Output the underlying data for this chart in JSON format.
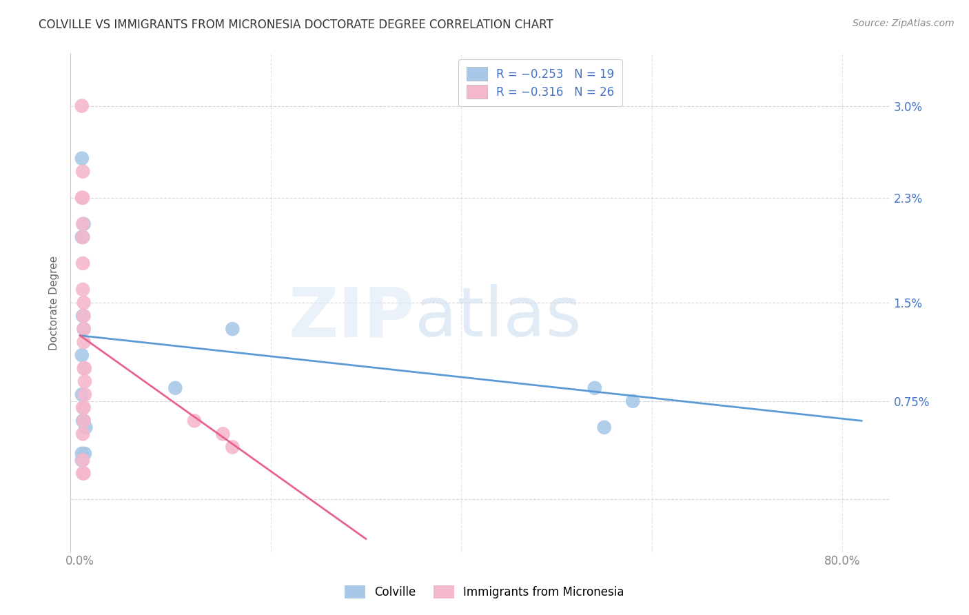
{
  "title": "COLVILLE VS IMMIGRANTS FROM MICRONESIA DOCTORATE DEGREE CORRELATION CHART",
  "source": "Source: ZipAtlas.com",
  "ylabel": "Doctorate Degree",
  "color_blue": "#a8c8e8",
  "color_pink": "#f4b8cc",
  "line_blue": "#5b9bd5",
  "line_pink": "#e8638a",
  "ytick_vals": [
    0.0,
    0.0075,
    0.015,
    0.023,
    0.03
  ],
  "ytick_labels_right": [
    "",
    "0.75%",
    "1.5%",
    "2.3%",
    "3.0%"
  ],
  "xlim": [
    -0.01,
    0.85
  ],
  "ylim": [
    -0.004,
    0.034
  ],
  "blue_scatter_x": [
    0.002,
    0.004,
    0.002,
    0.003,
    0.003,
    0.004,
    0.002,
    0.002,
    0.004,
    0.003,
    0.006,
    0.005,
    0.002,
    0.002,
    0.1,
    0.16,
    0.54,
    0.58,
    0.55
  ],
  "blue_scatter_y": [
    0.026,
    0.021,
    0.02,
    0.02,
    0.014,
    0.013,
    0.011,
    0.008,
    0.006,
    0.006,
    0.0055,
    0.0035,
    0.0035,
    0.003,
    0.0085,
    0.013,
    0.0085,
    0.0075,
    0.0055
  ],
  "pink_scatter_x": [
    0.002,
    0.003,
    0.002,
    0.003,
    0.003,
    0.003,
    0.003,
    0.003,
    0.004,
    0.004,
    0.004,
    0.004,
    0.004,
    0.005,
    0.005,
    0.005,
    0.004,
    0.003,
    0.004,
    0.003,
    0.003,
    0.12,
    0.15,
    0.16,
    0.003,
    0.004
  ],
  "pink_scatter_y": [
    0.03,
    0.025,
    0.023,
    0.023,
    0.021,
    0.02,
    0.018,
    0.016,
    0.015,
    0.014,
    0.013,
    0.012,
    0.01,
    0.01,
    0.009,
    0.008,
    0.007,
    0.007,
    0.006,
    0.005,
    0.003,
    0.006,
    0.005,
    0.004,
    0.002,
    0.002
  ],
  "blue_line_x": [
    0.0,
    0.82
  ],
  "blue_line_y": [
    0.0125,
    0.006
  ],
  "pink_line_x": [
    0.0,
    0.3
  ],
  "pink_line_y": [
    0.0125,
    -0.003
  ],
  "watermark_zip": "ZIP",
  "watermark_atlas": "atlas",
  "background_color": "#ffffff",
  "grid_color": "#cccccc",
  "xtick_positions": [
    0.0,
    0.2,
    0.4,
    0.6,
    0.8
  ],
  "xlabel_show": [
    0.0,
    0.8
  ],
  "xlabel_labels": [
    "0.0%",
    "80.0%"
  ]
}
